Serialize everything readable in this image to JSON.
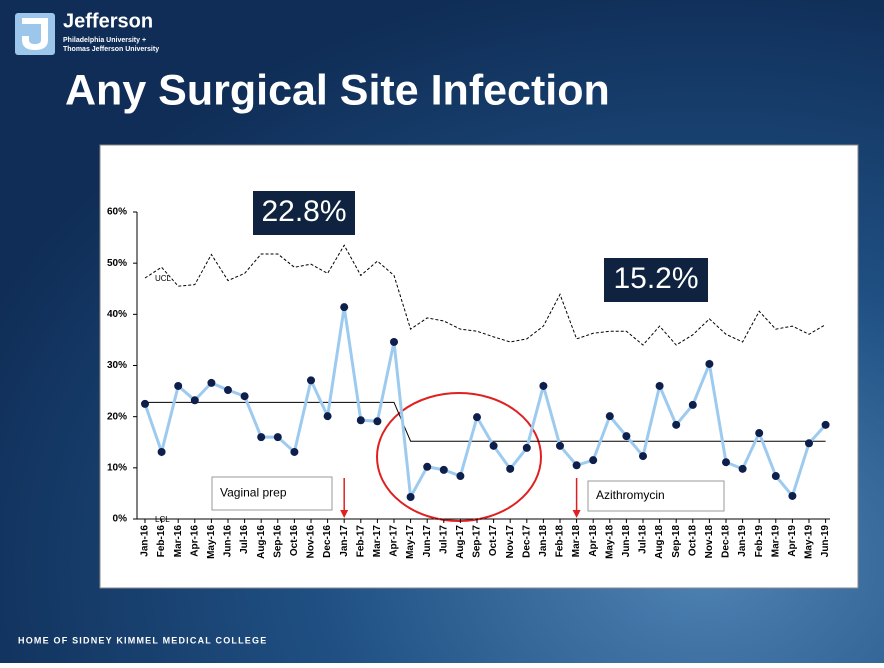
{
  "header": {
    "brand": "Jefferson",
    "brand_line_1": "Philadelphia University +",
    "brand_line_2": "Thomas Jefferson University",
    "title": "Any Surgical Site Infection"
  },
  "footer": "HOME OF SIDNEY KIMMEL MEDICAL COLLEGE",
  "chart_data": {
    "type": "line",
    "categories": [
      "Jan-16",
      "Feb-16",
      "Mar-16",
      "Apr-16",
      "May-16",
      "Jun-16",
      "Jul-16",
      "Aug-16",
      "Sep-16",
      "Oct-16",
      "Nov-16",
      "Dec-16",
      "Jan-17",
      "Feb-17",
      "Mar-17",
      "Apr-17",
      "May-17",
      "Jun-17",
      "Jul-17",
      "Aug-17",
      "Sep-17",
      "Oct-17",
      "Nov-17",
      "Dec-17",
      "Jan-18",
      "Feb-18",
      "Mar-18",
      "Apr-18",
      "May-18",
      "Jun-18",
      "Jul-18",
      "Aug-18",
      "Sep-18",
      "Oct-18",
      "Nov-18",
      "Dec-18",
      "Jan-19",
      "Feb-19",
      "Mar-19",
      "Apr-19",
      "May-19",
      "Jun-19"
    ],
    "series": [
      {
        "color": "#9dcbf0",
        "marker_color": "#0d1f4a",
        "values": [
          22.5,
          13.1,
          26.0,
          23.2,
          26.6,
          25.2,
          24.0,
          16.0,
          16.0,
          13.1,
          27.1,
          20.1,
          41.4,
          19.3,
          19.1,
          34.6,
          4.3,
          10.2,
          9.6,
          8.4,
          19.9,
          14.3,
          9.8,
          13.9,
          26.0,
          14.3,
          10.5,
          11.5,
          20.1,
          16.2,
          12.3,
          26.0,
          18.4,
          22.3,
          30.3,
          11.1,
          9.8,
          16.8,
          8.4,
          4.5,
          14.8,
          18.4
        ]
      },
      {
        "name": "UCL",
        "color": "#000000",
        "dashed": true,
        "values": [
          47.1,
          49.2,
          45.5,
          45.8,
          51.7,
          46.6,
          48.0,
          51.8,
          51.8,
          49.2,
          49.8,
          48.0,
          53.5,
          47.6,
          50.4,
          47.6,
          37.1,
          39.3,
          38.7,
          37.1,
          36.7,
          35.6,
          34.6,
          35.2,
          37.7,
          43.9,
          35.2,
          36.3,
          36.7,
          36.7,
          34.0,
          37.7,
          34.0,
          36.0,
          39.1,
          36.1,
          34.6,
          40.6,
          37.1,
          37.7,
          36.1,
          38.0
        ]
      },
      {
        "name": "LCL",
        "color": "#000000",
        "dashed": true,
        "values": [
          0,
          0,
          0,
          0,
          0,
          0,
          0,
          0,
          0,
          0,
          0,
          0,
          0,
          0,
          0,
          0,
          0,
          0,
          0,
          0,
          0,
          0,
          0,
          0,
          0,
          0,
          0,
          0,
          0,
          0,
          0,
          0,
          0,
          0,
          0,
          0,
          0,
          0,
          0,
          0,
          0,
          0
        ]
      },
      {
        "color": "#000000",
        "values": [
          22.8,
          22.8,
          22.8,
          22.8,
          22.8,
          22.8,
          22.8,
          22.8,
          22.8,
          22.8,
          22.8,
          22.8,
          22.8,
          22.8,
          22.8,
          22.8,
          15.2,
          15.2,
          15.2,
          15.2,
          15.2,
          15.2,
          15.2,
          15.2,
          15.2,
          15.2,
          15.2,
          15.2,
          15.2,
          15.2,
          15.2,
          15.2,
          15.2,
          15.2,
          15.2,
          15.2,
          15.2,
          15.2,
          15.2,
          15.2,
          15.2,
          15.2
        ]
      }
    ],
    "ylim": [
      0,
      60
    ],
    "yticks": [
      {
        "value": 0,
        "label": "0%"
      },
      {
        "value": 10,
        "label": "10%"
      },
      {
        "value": 20,
        "label": "20%"
      },
      {
        "value": 30,
        "label": "30%"
      },
      {
        "value": 40,
        "label": "40%"
      },
      {
        "value": 50,
        "label": "50%"
      },
      {
        "value": 60,
        "label": "60%"
      }
    ],
    "annotations": [
      "22.8%",
      "15.2%",
      "Vaginal prep",
      "Azithromycin"
    ]
  }
}
